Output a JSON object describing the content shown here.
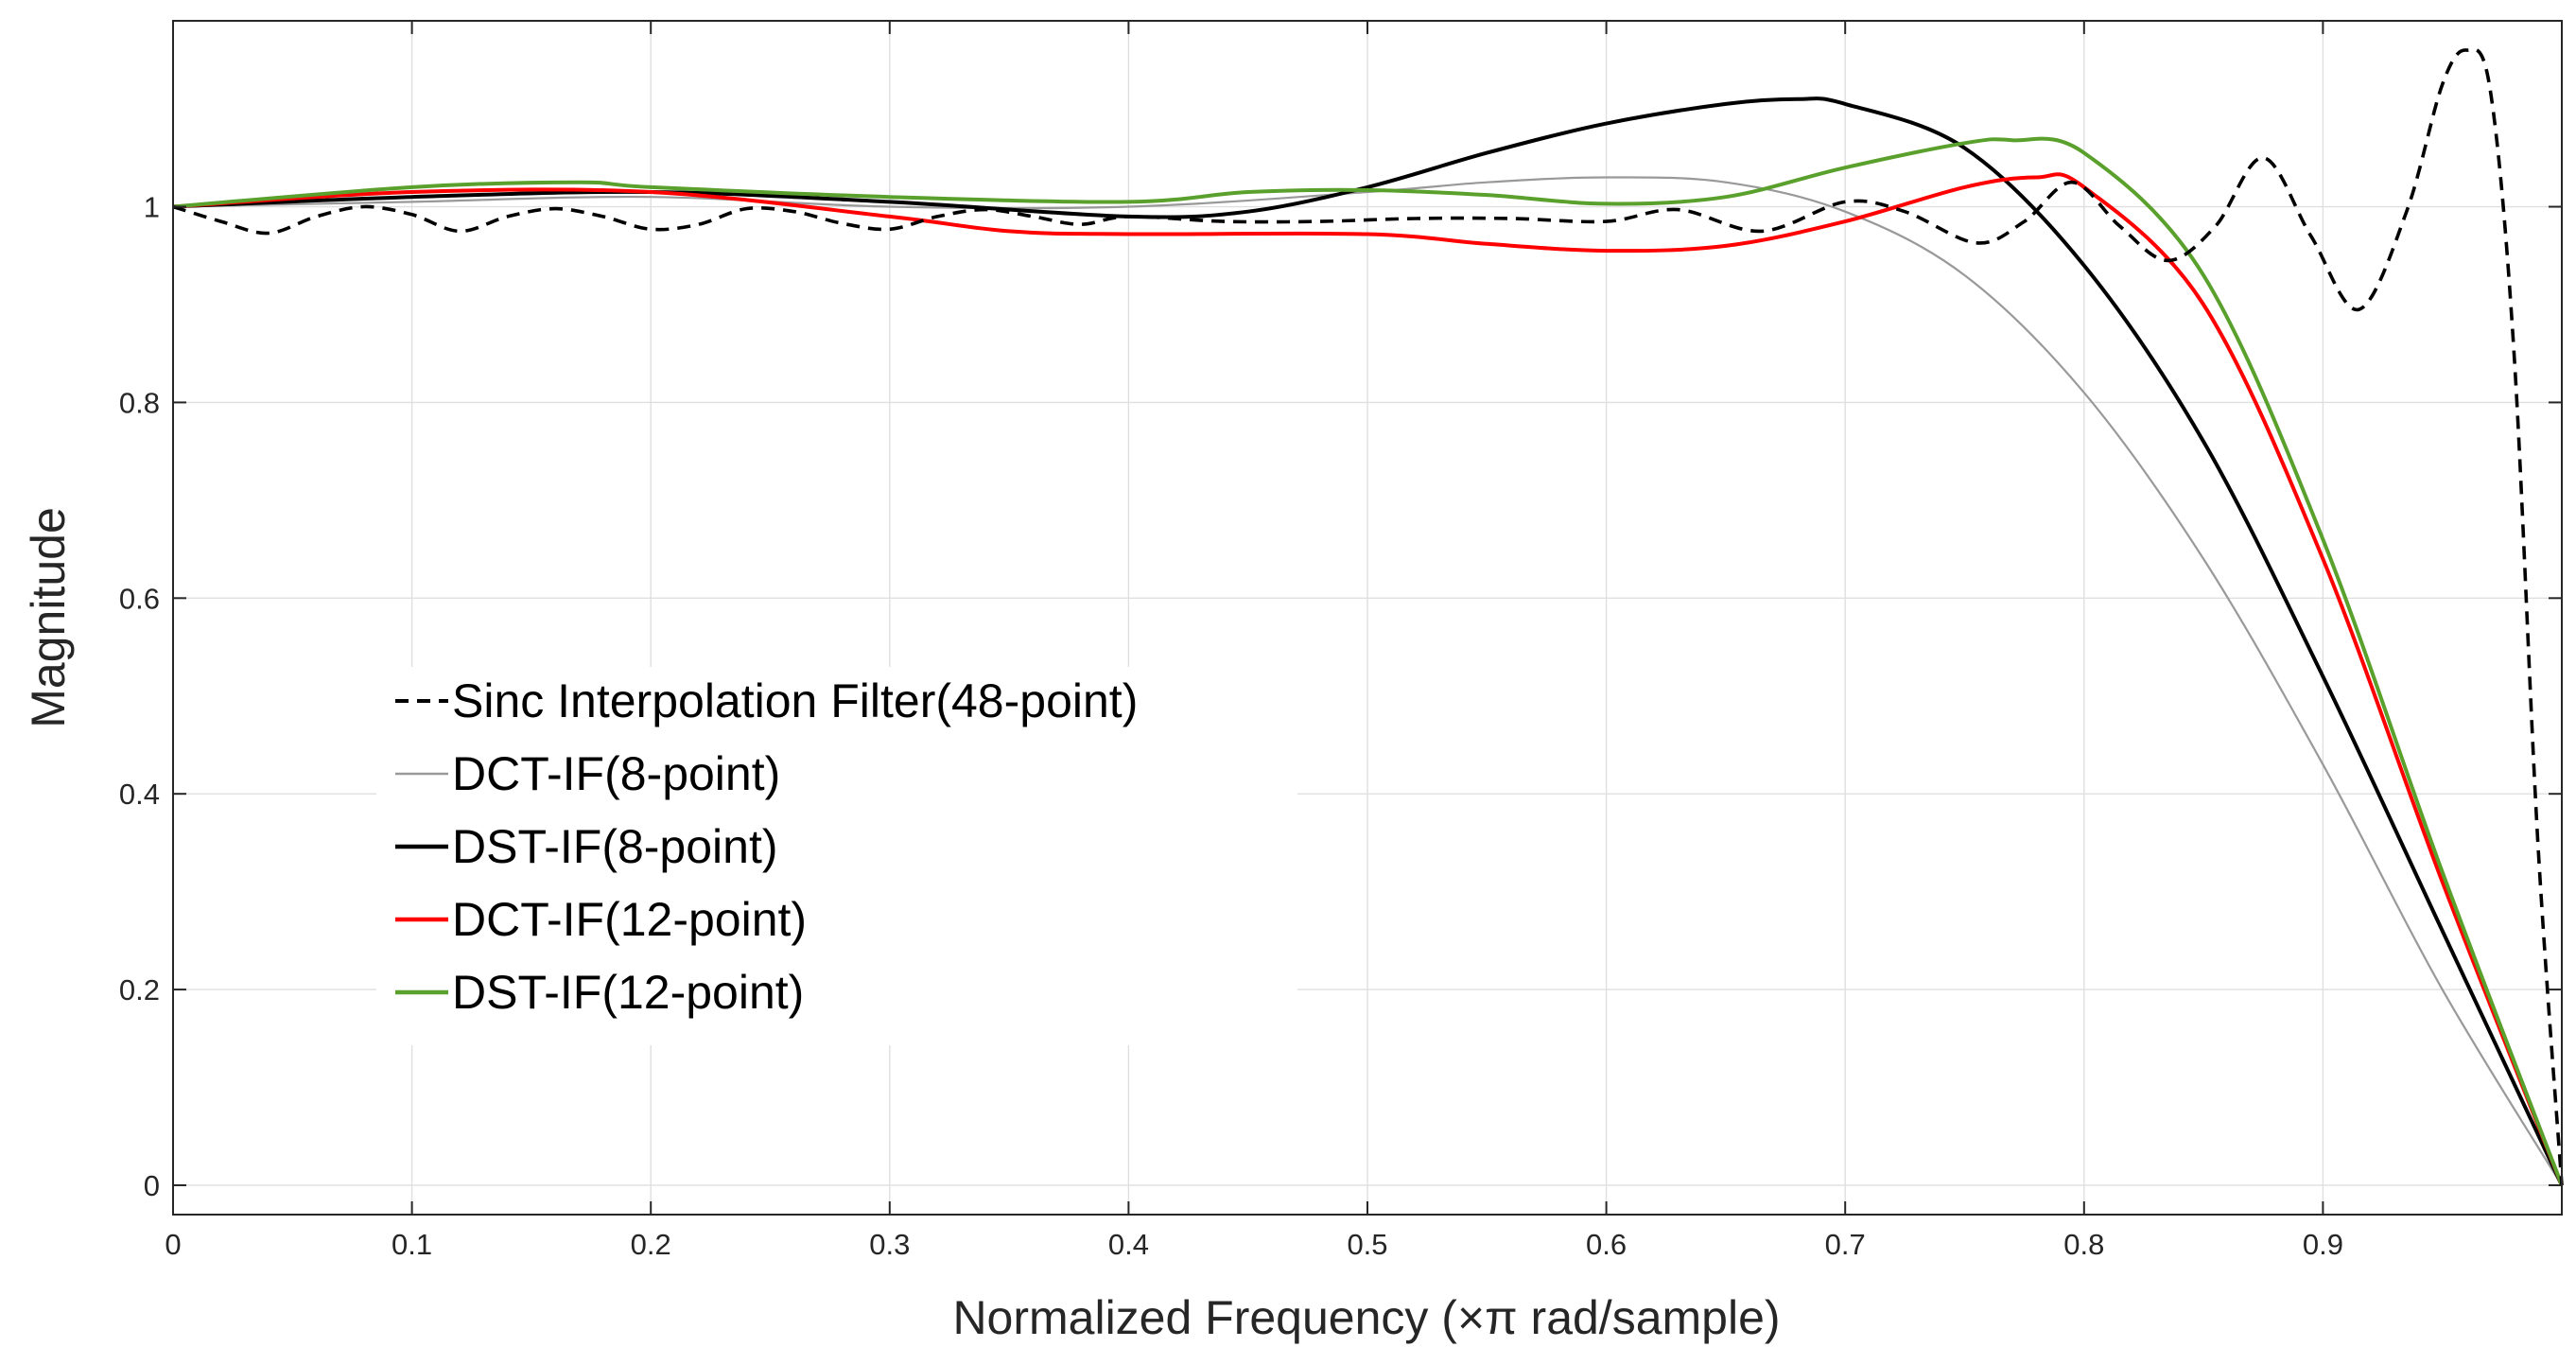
{
  "chart_data": {
    "type": "line",
    "title": "",
    "xlabel": "Normalized Frequency  (×π rad/sample)",
    "ylabel": "Magnitude",
    "xlim": [
      0,
      1
    ],
    "ylim": [
      -0.03,
      1.19
    ],
    "xticks": [
      "0",
      "0.1",
      "0.2",
      "0.3",
      "0.4",
      "0.5",
      "0.6",
      "0.7",
      "0.8",
      "0.9"
    ],
    "yticks": [
      "0",
      "0.2",
      "0.4",
      "0.6",
      "0.8",
      "1"
    ],
    "grid": true,
    "legend_position": "center-left",
    "series": [
      {
        "name": "Sinc Interpolation Filter(48-point)",
        "color": "#000000",
        "style": "dashed",
        "x": [
          0,
          0.02,
          0.04,
          0.06,
          0.08,
          0.1,
          0.12,
          0.14,
          0.16,
          0.18,
          0.2,
          0.22,
          0.24,
          0.26,
          0.28,
          0.3,
          0.32,
          0.34,
          0.36,
          0.38,
          0.4,
          0.44,
          0.48,
          0.52,
          0.56,
          0.6,
          0.63,
          0.665,
          0.7,
          0.725,
          0.755,
          0.775,
          0.795,
          0.815,
          0.835,
          0.855,
          0.875,
          0.895,
          0.915,
          0.935,
          0.95,
          0.96,
          0.97,
          0.98,
          0.99,
          1.0
        ],
        "y": [
          1.0,
          0.985,
          0.973,
          0.99,
          1.0,
          0.992,
          0.975,
          0.99,
          0.998,
          0.99,
          0.977,
          0.982,
          0.998,
          0.995,
          0.983,
          0.977,
          0.99,
          0.997,
          0.99,
          0.982,
          0.99,
          0.985,
          0.985,
          0.988,
          0.988,
          0.985,
          0.997,
          0.975,
          1.005,
          0.995,
          0.963,
          0.985,
          1.025,
          0.98,
          0.945,
          0.98,
          1.05,
          0.97,
          0.895,
          0.995,
          1.125,
          1.16,
          1.12,
          0.85,
          0.35,
          0.0
        ]
      },
      {
        "name": "DCT-IF(8-point)",
        "color": "#999999",
        "style": "solid",
        "x": [
          0,
          0.1,
          0.2,
          0.3,
          0.4,
          0.5,
          0.55,
          0.6,
          0.65,
          0.7,
          0.75,
          0.8,
          0.85,
          0.9,
          0.95,
          1.0
        ],
        "y": [
          1.0,
          1.005,
          1.01,
          1.0,
          1.0,
          1.015,
          1.025,
          1.03,
          1.025,
          0.995,
          0.93,
          0.81,
          0.64,
          0.43,
          0.2,
          0.0
        ]
      },
      {
        "name": "DST-IF(8-point)",
        "color": "#000000",
        "style": "solid",
        "x": [
          0,
          0.1,
          0.2,
          0.3,
          0.4,
          0.45,
          0.5,
          0.55,
          0.6,
          0.65,
          0.68,
          0.7,
          0.75,
          0.8,
          0.85,
          0.9,
          0.95,
          1.0
        ],
        "y": [
          1.0,
          1.01,
          1.015,
          1.005,
          0.99,
          0.995,
          1.02,
          1.055,
          1.085,
          1.105,
          1.11,
          1.105,
          1.06,
          0.94,
          0.76,
          0.52,
          0.26,
          0.0
        ]
      },
      {
        "name": "DCT-IF(12-point)",
        "color": "#ff0000",
        "style": "solid",
        "x": [
          0,
          0.1,
          0.2,
          0.3,
          0.35,
          0.4,
          0.5,
          0.55,
          0.6,
          0.65,
          0.7,
          0.75,
          0.78,
          0.8,
          0.85,
          0.9,
          0.95,
          1.0
        ],
        "y": [
          1.0,
          1.015,
          1.015,
          0.99,
          0.975,
          0.972,
          0.972,
          0.962,
          0.955,
          0.96,
          0.985,
          1.02,
          1.03,
          1.02,
          0.9,
          0.64,
          0.31,
          0.0
        ]
      },
      {
        "name": "DST-IF(12-point)",
        "color": "#5aa02c",
        "style": "solid",
        "x": [
          0,
          0.1,
          0.17,
          0.2,
          0.3,
          0.4,
          0.45,
          0.5,
          0.55,
          0.6,
          0.65,
          0.7,
          0.75,
          0.77,
          0.8,
          0.85,
          0.9,
          0.95,
          1.0
        ],
        "y": [
          1.0,
          1.02,
          1.025,
          1.02,
          1.01,
          1.005,
          1.015,
          1.017,
          1.012,
          1.003,
          1.01,
          1.04,
          1.065,
          1.068,
          1.055,
          0.93,
          0.66,
          0.32,
          0.0
        ]
      }
    ]
  }
}
